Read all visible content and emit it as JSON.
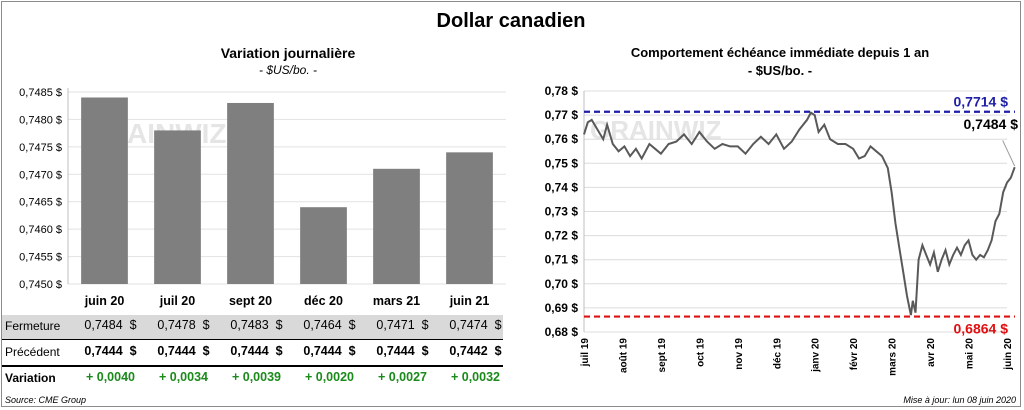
{
  "title": "Dollar canadien",
  "left": {
    "title": "Variation  journalière",
    "subtitle": "- $US/bo. -",
    "watermark": "GRAINWIZ",
    "chart_data": {
      "type": "bar",
      "categories": [
        "juin 20",
        "juil 20",
        "sept 20",
        "déc 20",
        "mars 21",
        "juin 21"
      ],
      "values": [
        0.7484,
        0.7478,
        0.7483,
        0.7464,
        0.7471,
        0.7474
      ],
      "ylim": [
        0.745,
        0.7485
      ],
      "yticks": [
        "0,7450 $",
        "0,7455 $",
        "0,7460 $",
        "0,7465 $",
        "0,7470 $",
        "0,7475 $",
        "0,7480 $",
        "0,7485 $"
      ],
      "bar_color": "#7f7f7f"
    },
    "table": {
      "rows": [
        {
          "label": "Fermeture",
          "cells": [
            "0,7484  $",
            "0,7478  $",
            "0,7483  $",
            "0,7464  $",
            "0,7471  $",
            "0,7474  $"
          ]
        },
        {
          "label": "Précédent",
          "cells": [
            "0,7444  $",
            "0,7444  $",
            "0,7444  $",
            "0,7444  $",
            "0,7444  $",
            "0,7442  $"
          ]
        },
        {
          "label": "Variation",
          "cells": [
            "+ 0,0040",
            "+ 0,0034",
            "+ 0,0039",
            "+ 0,0020",
            "+ 0,0027",
            "+ 0,0032"
          ]
        }
      ]
    },
    "source": "Source: CME Group"
  },
  "right": {
    "title": "Comportement échéance immédiate depuis 1 an",
    "subtitle": "- $US/bo. -",
    "watermark": "GRAINWIZ",
    "chart_data": {
      "type": "line",
      "xlabels": [
        "juil 19",
        "août 19",
        "sept 19",
        "oct 19",
        "nov 19",
        "déc 19",
        "janv 20",
        "févr 20",
        "mars 20",
        "avr 20",
        "mai 20",
        "juin 20"
      ],
      "ylim": [
        0.68,
        0.78
      ],
      "yticks": [
        "0,68 $",
        "0,69 $",
        "0,70 $",
        "0,71 $",
        "0,72 $",
        "0,73 $",
        "0,74 $",
        "0,75 $",
        "0,76 $",
        "0,77 $",
        "0,78 $"
      ],
      "series": [
        {
          "color": "#595959",
          "x_month": [
            0.0,
            0.1,
            0.2,
            0.35,
            0.5,
            0.6,
            0.75,
            0.9,
            1.05,
            1.2,
            1.35,
            1.5,
            1.7,
            1.85,
            2.0,
            2.2,
            2.4,
            2.6,
            2.8,
            3.0,
            3.2,
            3.4,
            3.6,
            3.8,
            4.0,
            4.2,
            4.4,
            4.6,
            4.8,
            5.0,
            5.2,
            5.4,
            5.6,
            5.8,
            5.9,
            6.0,
            6.1,
            6.25,
            6.4,
            6.6,
            6.8,
            7.0,
            7.15,
            7.3,
            7.45,
            7.6,
            7.75,
            7.9,
            8.0,
            8.1,
            8.2,
            8.3,
            8.4,
            8.5,
            8.55,
            8.62,
            8.7,
            8.8,
            8.9,
            9.0,
            9.1,
            9.2,
            9.3,
            9.4,
            9.5,
            9.6,
            9.7,
            9.8,
            9.9,
            10.0,
            10.1,
            10.2,
            10.3,
            10.4,
            10.5,
            10.6,
            10.7,
            10.8,
            10.9,
            11.0,
            11.1,
            11.2
          ],
          "y": [
            0.762,
            0.767,
            0.768,
            0.764,
            0.76,
            0.766,
            0.758,
            0.755,
            0.757,
            0.753,
            0.756,
            0.752,
            0.758,
            0.756,
            0.754,
            0.758,
            0.759,
            0.762,
            0.758,
            0.763,
            0.759,
            0.756,
            0.758,
            0.757,
            0.757,
            0.754,
            0.758,
            0.761,
            0.758,
            0.762,
            0.756,
            0.759,
            0.764,
            0.768,
            0.771,
            0.77,
            0.763,
            0.766,
            0.76,
            0.758,
            0.758,
            0.756,
            0.752,
            0.753,
            0.757,
            0.755,
            0.753,
            0.748,
            0.738,
            0.725,
            0.715,
            0.705,
            0.695,
            0.687,
            0.693,
            0.688,
            0.71,
            0.716,
            0.712,
            0.708,
            0.713,
            0.705,
            0.71,
            0.714,
            0.708,
            0.712,
            0.715,
            0.712,
            0.716,
            0.718,
            0.712,
            0.71,
            0.712,
            0.711,
            0.714,
            0.718,
            0.726,
            0.729,
            0.738,
            0.742,
            0.744,
            0.7484
          ]
        }
      ],
      "resistance": {
        "value": 0.7714,
        "label": "0,7714  $",
        "color": "#1f1fa8"
      },
      "support": {
        "value": 0.6864,
        "label": "0,6864  $",
        "color": "#e01010"
      },
      "last": {
        "value": 0.7484,
        "label": "0,7484 $"
      }
    },
    "updated": "Mise à jour: lun 08 juin 2020"
  }
}
